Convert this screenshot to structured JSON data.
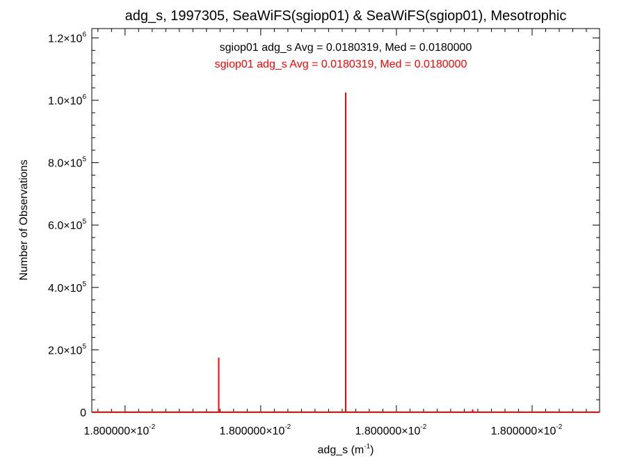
{
  "chart_data": {
    "type": "bar",
    "title": "adg_s, 1997305, SeaWiFS(sgiop01) & SeaWiFS(sgiop01), Mesotrophic",
    "xlabel": {
      "base": "adg_s (m",
      "sup": "-1",
      "close": ")"
    },
    "ylabel": "Number of Observations",
    "legend": {
      "placement": "top-center",
      "entries": [
        {
          "text": "sgiop01 adg_s Avg = 0.0180319, Med = 0.0180000",
          "color": "#000000"
        },
        {
          "text": "sgiop01 adg_s Avg = 0.0180319, Med = 0.0180000",
          "color": "#ff0000"
        }
      ]
    },
    "xlim": [
      0,
      1
    ],
    "ylim": [
      0,
      1230000
    ],
    "x_ticks": [
      {
        "value": 0.0655,
        "mantissa": "1.800000",
        "exp": "-2"
      },
      {
        "value": 0.3327,
        "mantissa": "1.800000",
        "exp": "-2"
      },
      {
        "value": 0.5999,
        "mantissa": "1.800000",
        "exp": "-2"
      },
      {
        "value": 0.8671,
        "mantissa": "1.800000",
        "exp": "-2"
      }
    ],
    "y_ticks": [
      {
        "value": 0,
        "mantissa": "0",
        "exp": ""
      },
      {
        "value": 200000,
        "mantissa": "2.0",
        "exp": "5"
      },
      {
        "value": 400000,
        "mantissa": "4.0",
        "exp": "5"
      },
      {
        "value": 600000,
        "mantissa": "6.0",
        "exp": "5"
      },
      {
        "value": 800000,
        "mantissa": "8.0",
        "exp": "5"
      },
      {
        "value": 1000000,
        "mantissa": "1.0",
        "exp": "6"
      },
      {
        "value": 1200000,
        "mantissa": "1.2",
        "exp": "6"
      }
    ],
    "series": [
      {
        "color": "#ff0000",
        "x": [
          0.25,
          0.5,
          0.75
        ],
        "values": [
          175000,
          1025000,
          9000
        ]
      }
    ]
  }
}
